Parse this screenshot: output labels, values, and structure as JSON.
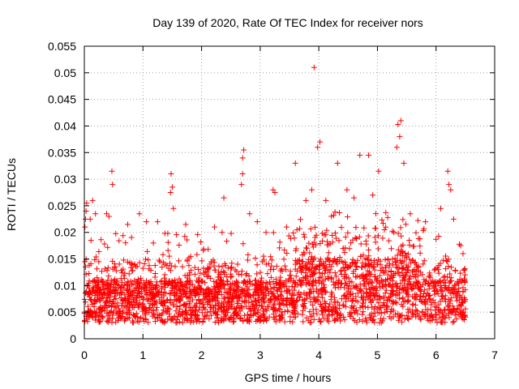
{
  "chart_data": {
    "type": "scatter",
    "title": "Day 139 of 2020, Rate Of TEC Index for receiver nors",
    "xlabel": "GPS time / hours",
    "ylabel": "ROTI / TECUs",
    "xlim": [
      0,
      7
    ],
    "ylim": [
      0,
      0.055
    ],
    "xticks": [
      "0",
      "1",
      "2",
      "3",
      "4",
      "5",
      "6",
      "7"
    ],
    "yticks": [
      "0",
      "0.005",
      "0.01",
      "0.015",
      "0.02",
      "0.025",
      "0.03",
      "0.035",
      "0.04",
      "0.045",
      "0.05",
      "0.055"
    ],
    "grid": true,
    "marker": "+",
    "series_color": "#ff0000",
    "x_data_range": [
      0,
      6.5
    ],
    "points": [
      [
        3.92,
        0.051
      ],
      [
        5.4,
        0.041
      ],
      [
        5.35,
        0.0403
      ],
      [
        5.38,
        0.038
      ],
      [
        5.33,
        0.036
      ],
      [
        4.02,
        0.037
      ],
      [
        3.98,
        0.036
      ],
      [
        4.7,
        0.0345
      ],
      [
        2.72,
        0.0355
      ],
      [
        2.7,
        0.034
      ],
      [
        5.45,
        0.033
      ],
      [
        0.47,
        0.0315
      ],
      [
        1.48,
        0.031
      ],
      [
        6.2,
        0.0315
      ],
      [
        5.02,
        0.0315
      ],
      [
        4.32,
        0.033
      ],
      [
        4.85,
        0.0345
      ],
      [
        3.6,
        0.033
      ],
      [
        2.7,
        0.031
      ],
      [
        2.68,
        0.029
      ],
      [
        0.48,
        0.029
      ],
      [
        1.5,
        0.0285
      ],
      [
        1.47,
        0.0275
      ],
      [
        6.22,
        0.029
      ],
      [
        6.25,
        0.028
      ],
      [
        3.22,
        0.028
      ],
      [
        3.25,
        0.0275
      ],
      [
        2.38,
        0.0265
      ],
      [
        0.14,
        0.026
      ],
      [
        0.04,
        0.0255
      ],
      [
        0.03,
        0.024
      ],
      [
        0.02,
        0.0225
      ],
      [
        0.01,
        0.021
      ],
      [
        0.19,
        0.0235
      ],
      [
        0.1,
        0.0225
      ],
      [
        0.38,
        0.0235
      ],
      [
        0.42,
        0.023
      ],
      [
        0.74,
        0.0215
      ],
      [
        0.94,
        0.0235
      ],
      [
        1.06,
        0.022
      ],
      [
        1.25,
        0.022
      ],
      [
        1.52,
        0.0245
      ],
      [
        1.73,
        0.0215
      ],
      [
        2.22,
        0.021
      ],
      [
        2.35,
        0.02
      ],
      [
        2.82,
        0.0235
      ],
      [
        2.95,
        0.022
      ],
      [
        3.1,
        0.02
      ],
      [
        3.45,
        0.021
      ],
      [
        3.78,
        0.026
      ],
      [
        3.88,
        0.028
      ],
      [
        4.12,
        0.026
      ],
      [
        4.48,
        0.028
      ],
      [
        4.6,
        0.0265
      ],
      [
        4.92,
        0.027
      ],
      [
        5.12,
        0.0205
      ],
      [
        5.56,
        0.0235
      ],
      [
        5.82,
        0.022
      ],
      [
        6.08,
        0.0245
      ],
      [
        6.3,
        0.0225
      ],
      [
        6.42,
        0.0175
      ],
      [
        6.46,
        0.016
      ],
      [
        0.01,
        0.0145
      ],
      [
        0.02,
        0.0135
      ],
      [
        0.0,
        0.005
      ]
    ]
  }
}
